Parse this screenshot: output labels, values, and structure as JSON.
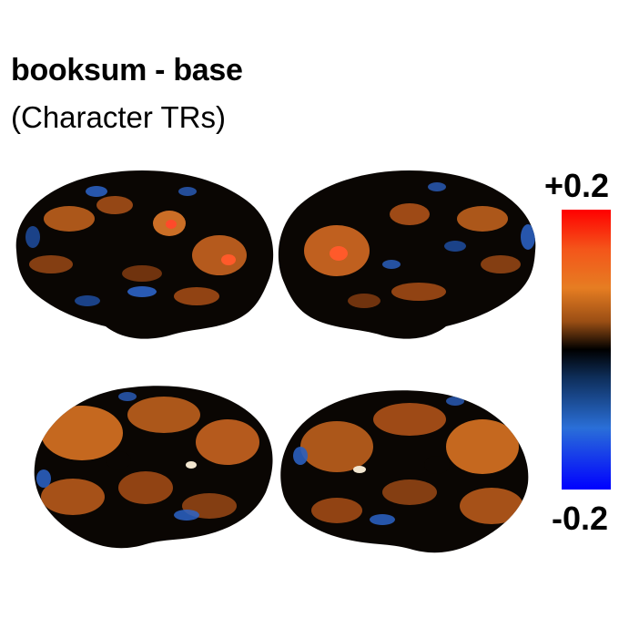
{
  "figure": {
    "title": "booksum - base",
    "subtitle": "(Character TRs)"
  },
  "colorbar": {
    "max_label": "+0.2",
    "min_label": "-0.2",
    "colors": [
      "#ff0000",
      "#e67d22",
      "#000000",
      "#2a6fd8",
      "#0000ff"
    ]
  },
  "views": [
    {
      "position": "top-left",
      "hemisphere": "left",
      "view": "lateral"
    },
    {
      "position": "top-right",
      "hemisphere": "right",
      "view": "lateral"
    },
    {
      "position": "bottom-left",
      "hemisphere": "left",
      "view": "medial"
    },
    {
      "position": "bottom-right",
      "hemisphere": "right",
      "view": "medial"
    }
  ]
}
